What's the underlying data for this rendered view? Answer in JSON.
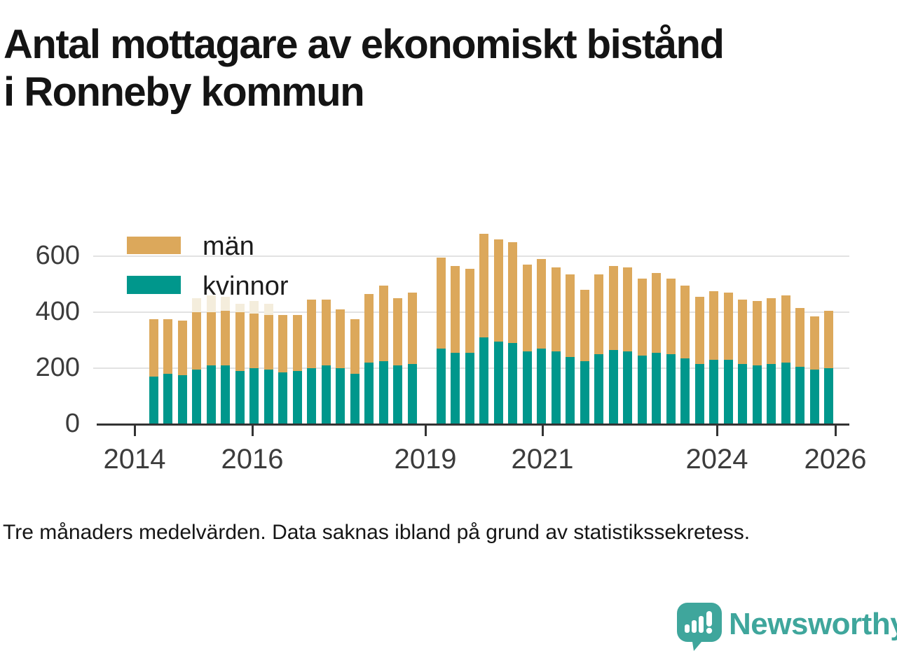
{
  "title": {
    "line1": "Antal mottagare av ekonomiskt bistånd",
    "line2": "i Ronneby kommun"
  },
  "legend": {
    "items": [
      {
        "label": "män",
        "color": "#dca85b"
      },
      {
        "label": "kvinnor",
        "color": "#00978c"
      }
    ]
  },
  "footer": {
    "note": "Tre månaders medelvärden. Data saknas ibland på grund av statistikssekretess."
  },
  "branding": {
    "name": "Newsworthy",
    "color": "#3fa69c",
    "icon": "speech-bubble-bar-chart-icon"
  },
  "chart_data": {
    "type": "bar",
    "stacked": true,
    "title": "Antal mottagare av ekonomiskt bistånd i Ronneby kommun",
    "xlabel": "",
    "ylabel": "",
    "ylim": [
      0,
      700
    ],
    "y_ticks": [
      0,
      200,
      400,
      600
    ],
    "y_tick_labels": [
      "0",
      "200",
      "400",
      "600"
    ],
    "x_tick_labels": [
      "2014",
      "2016",
      "2019",
      "2021",
      "2024",
      "2026"
    ],
    "grid": "horizontal",
    "legend_position": "top-left-inside",
    "note": "Tre månaders medelvärden. Data saknas ibland på grund av statistikssekretess.",
    "missing_periods": [
      "2019 Q1"
    ],
    "categories": [
      "2014 Q2",
      "2014 Q3",
      "2014 Q4",
      "2015 Q1",
      "2015 Q2",
      "2015 Q3",
      "2015 Q4",
      "2016 Q1",
      "2016 Q2",
      "2016 Q3",
      "2016 Q4",
      "2017 Q1",
      "2017 Q2",
      "2017 Q3",
      "2017 Q4",
      "2018 Q1",
      "2018 Q2",
      "2018 Q3",
      "2018 Q4",
      "2019 Q1",
      "2019 Q2",
      "2019 Q3",
      "2019 Q4",
      "2020 Q1",
      "2020 Q2",
      "2020 Q3",
      "2020 Q4",
      "2021 Q1",
      "2021 Q2",
      "2021 Q3",
      "2021 Q4",
      "2022 Q1",
      "2022 Q2",
      "2022 Q3",
      "2022 Q4",
      "2023 Q1",
      "2023 Q2",
      "2023 Q3",
      "2023 Q4",
      "2024 Q1",
      "2024 Q2",
      "2024 Q3",
      "2024 Q4",
      "2025 Q1",
      "2025 Q2",
      "2025 Q3",
      "2025 Q4",
      "2026 Q1"
    ],
    "series": [
      {
        "name": "kvinnor",
        "color": "#00978c",
        "values": [
          170,
          180,
          175,
          195,
          210,
          210,
          190,
          200,
          195,
          185,
          190,
          200,
          210,
          200,
          180,
          220,
          225,
          210,
          215,
          null,
          270,
          255,
          255,
          310,
          295,
          290,
          260,
          270,
          260,
          240,
          225,
          250,
          265,
          260,
          245,
          255,
          250,
          235,
          215,
          230,
          230,
          215,
          210,
          215,
          220,
          205,
          195,
          200
        ]
      },
      {
        "name": "män",
        "color": "#dca85b",
        "values": [
          205,
          195,
          195,
          205,
          190,
          195,
          210,
          195,
          195,
          205,
          200,
          245,
          235,
          210,
          195,
          245,
          270,
          240,
          255,
          null,
          325,
          310,
          300,
          370,
          365,
          360,
          310,
          320,
          300,
          295,
          255,
          285,
          300,
          300,
          275,
          285,
          270,
          260,
          240,
          245,
          240,
          230,
          230,
          235,
          240,
          210,
          190,
          205
        ]
      }
    ],
    "faded_overlay_color": "#f4eddc",
    "faded_overlay_total": [
      null,
      null,
      null,
      450,
      460,
      455,
      430,
      440,
      430,
      null,
      null,
      null,
      null,
      null,
      null,
      null,
      null,
      null,
      null,
      null,
      null,
      null,
      null,
      null,
      null,
      null,
      null,
      null,
      null,
      null,
      null,
      null,
      null,
      null,
      null,
      null,
      null,
      null,
      null,
      null,
      null,
      null,
      null,
      null,
      null,
      null,
      null,
      null
    ]
  }
}
